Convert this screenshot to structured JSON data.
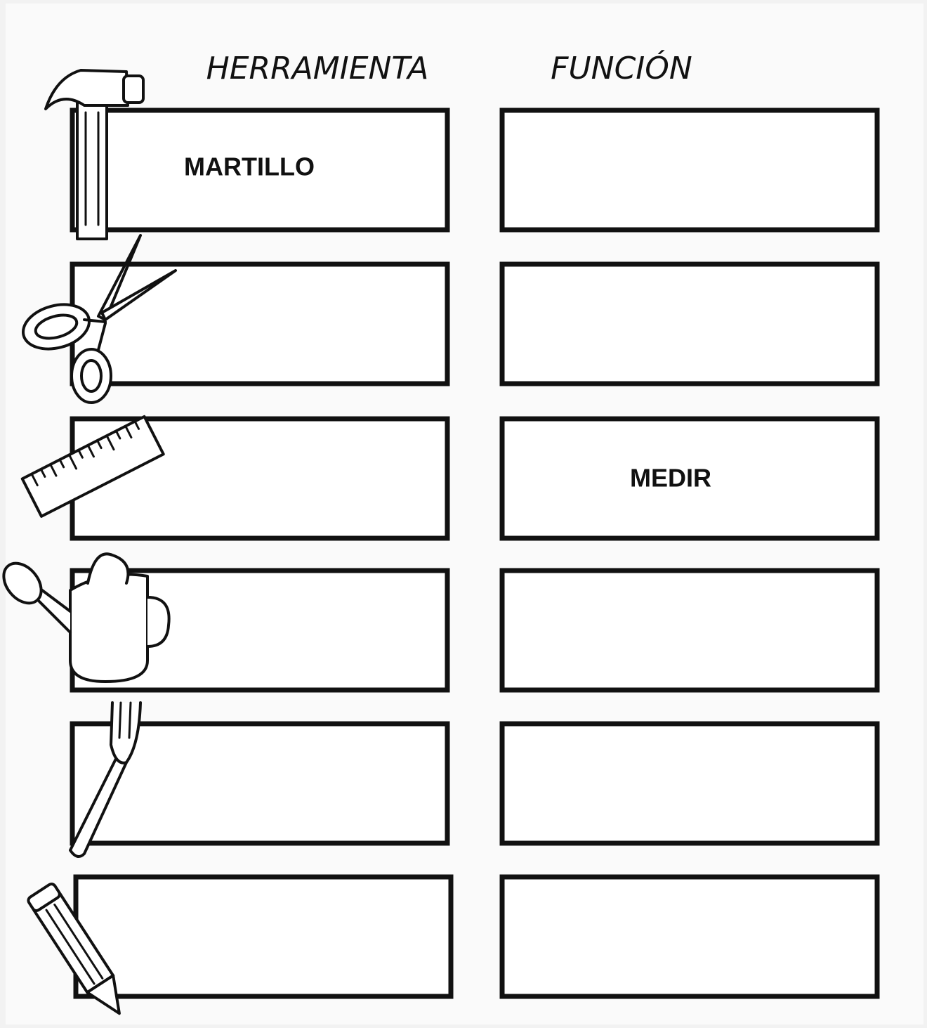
{
  "header": {
    "tool": "HERRAMIENTA",
    "function": "FUNCIÓN"
  },
  "boxes": {
    "hammer_tool": "MARTILLO",
    "ruler_function": "MEDIR"
  }
}
